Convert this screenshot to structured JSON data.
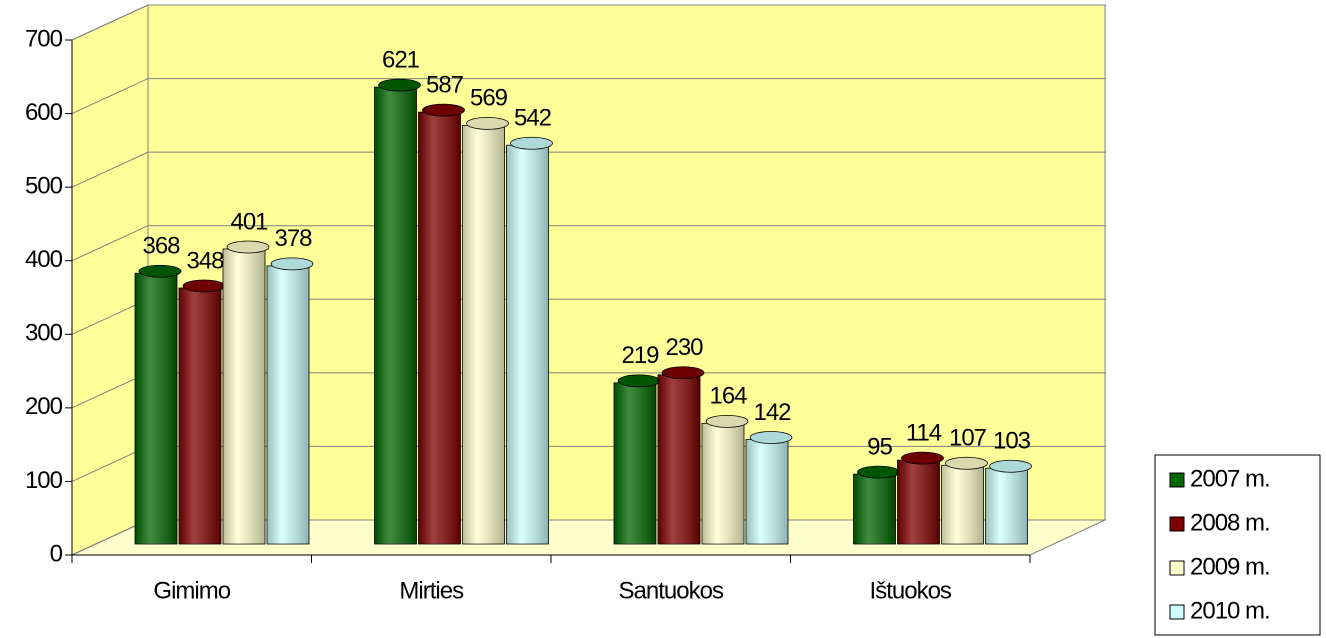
{
  "chart_data": {
    "type": "bar",
    "categories": [
      "Gimimo",
      "Mirties",
      "Santuokos",
      "Ištuokos"
    ],
    "series": [
      {
        "name": "2007 m.",
        "color": "#006600",
        "values": [
          368,
          621,
          219,
          95
        ]
      },
      {
        "name": "2008 m.",
        "color": "#800000",
        "values": [
          348,
          587,
          230,
          114
        ]
      },
      {
        "name": "2009 m.",
        "color": "#ffffcc",
        "values": [
          401,
          569,
          164,
          107
        ]
      },
      {
        "name": "2010 m.",
        "color": "#ccffff",
        "values": [
          378,
          542,
          142,
          103
        ]
      }
    ],
    "ylim": [
      0,
      700
    ],
    "yticks": [
      0,
      100,
      200,
      300,
      400,
      500,
      600,
      700
    ],
    "grid": true,
    "legend": "bottom-right"
  }
}
